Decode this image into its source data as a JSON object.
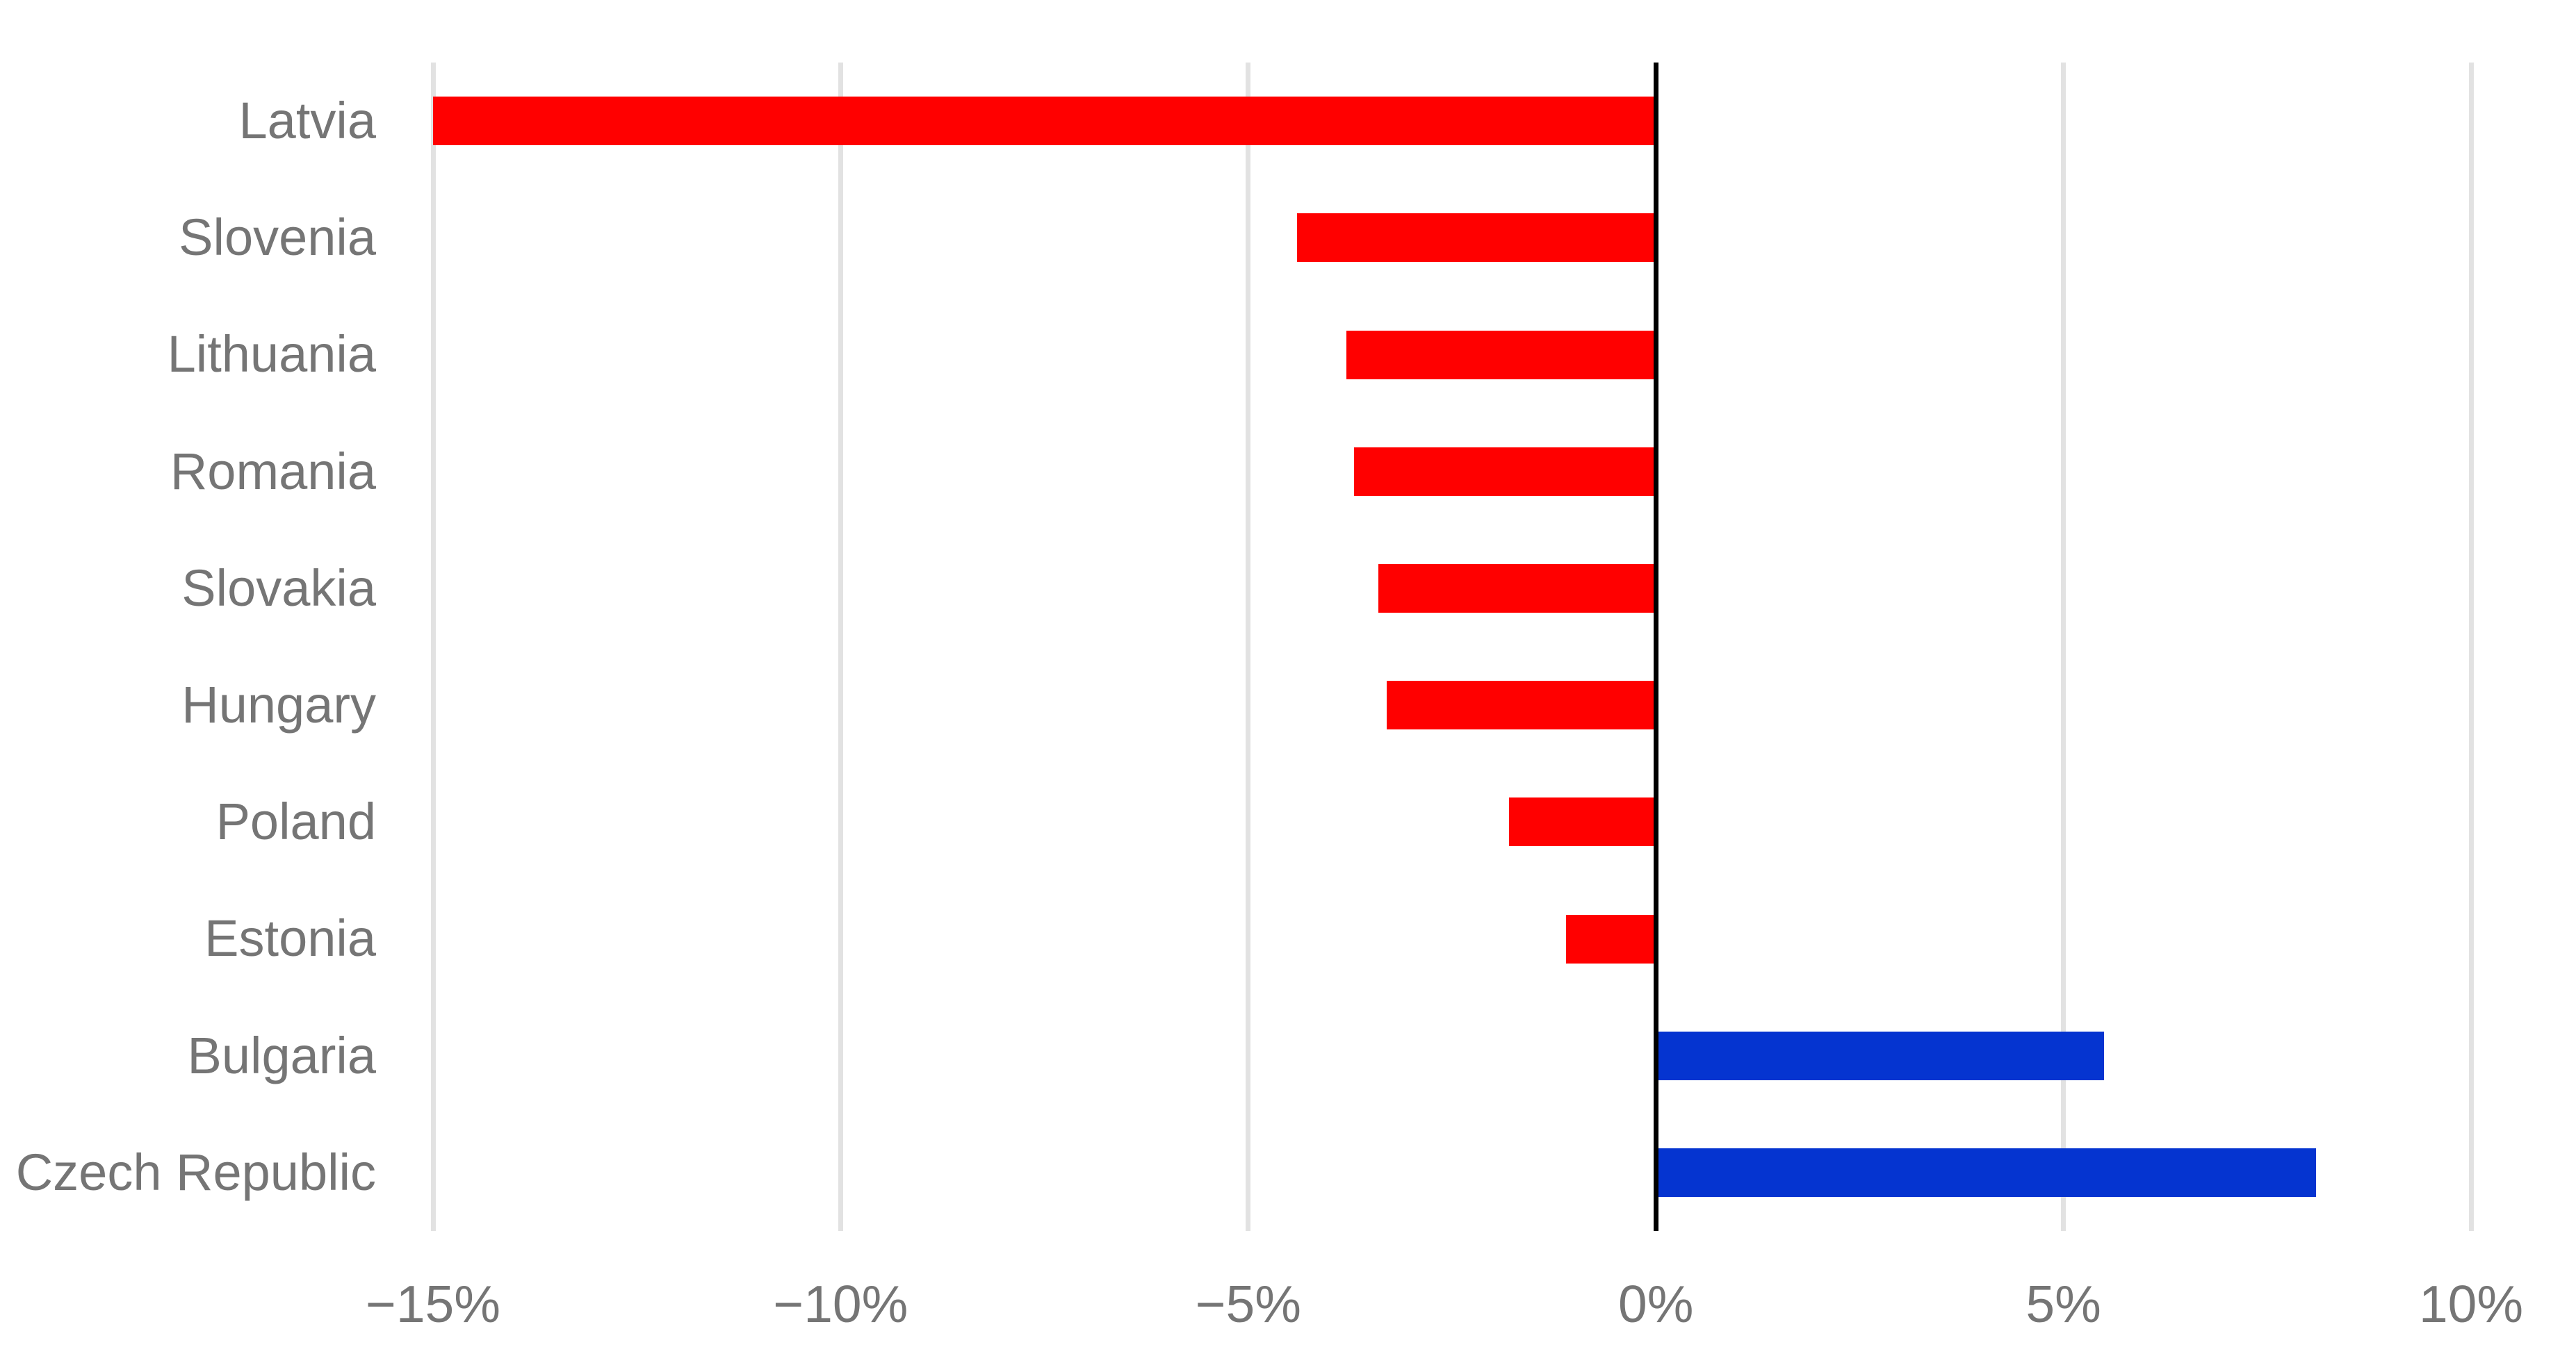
{
  "chart_data": {
    "type": "bar",
    "orientation": "horizontal",
    "title": "",
    "categories": [
      "Latvia",
      "Slovenia",
      "Lithuania",
      "Romania",
      "Slovakia",
      "Hungary",
      "Poland",
      "Estonia",
      "Bulgaria",
      "Czech Republic"
    ],
    "values": [
      -15.0,
      -4.4,
      -3.8,
      -3.7,
      -3.4,
      -3.3,
      -1.8,
      -1.1,
      5.5,
      8.1
    ],
    "value_unit": "%",
    "xlabel": "",
    "ylabel": "",
    "xlim": [
      -15,
      10
    ],
    "x_ticks": [
      {
        "value": -15,
        "label": "−15%"
      },
      {
        "value": -10,
        "label": "−10%"
      },
      {
        "value": -5,
        "label": "−5%"
      },
      {
        "value": 0,
        "label": "0%"
      },
      {
        "value": 5,
        "label": "5%"
      },
      {
        "value": 10,
        "label": "10%"
      }
    ],
    "grid": true,
    "legend": false,
    "colors": {
      "negative_bar": "#ff0000",
      "positive_bar": "#0534d0",
      "gridline": "#e2e2e2",
      "zero_axis": "#000000",
      "label_text": "#757575"
    }
  }
}
